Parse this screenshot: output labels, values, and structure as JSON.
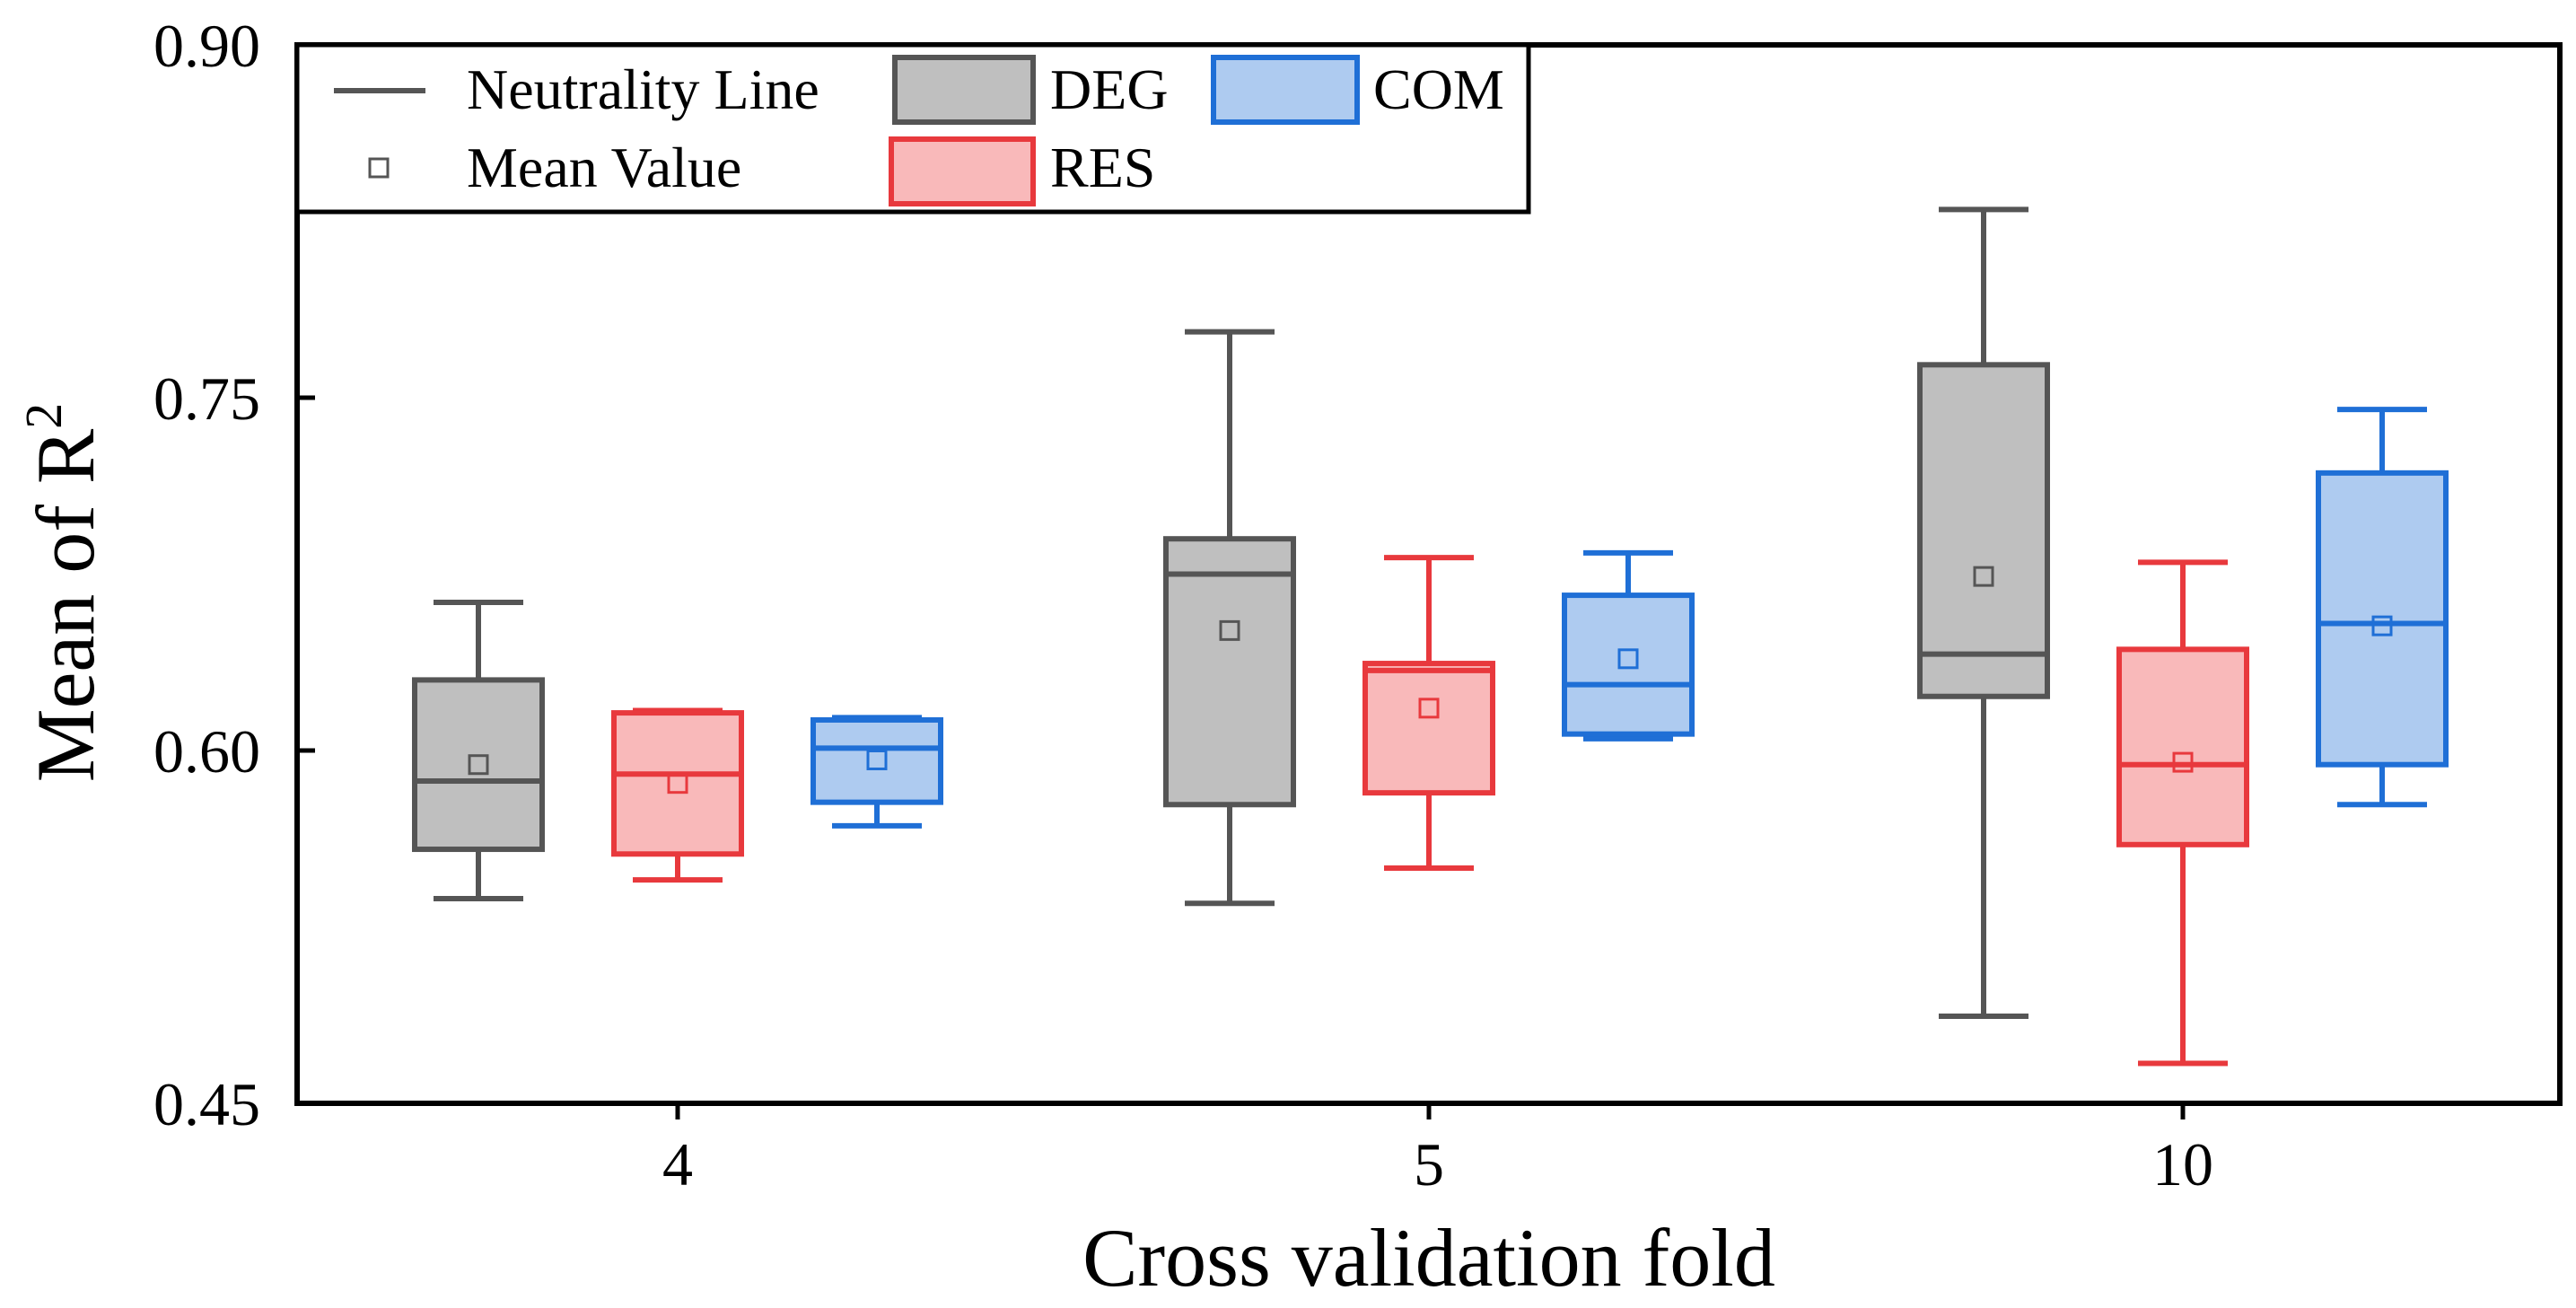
{
  "chart_data": {
    "type": "box",
    "xlabel": "Cross validation fold",
    "ylabel_main": "Mean of R",
    "ylabel_sup": "2",
    "ylim": [
      0.45,
      0.9
    ],
    "yticks": [
      "0.45",
      "0.60",
      "0.75",
      "0.90"
    ],
    "ytick_values": [
      0.45,
      0.6,
      0.75,
      0.9
    ],
    "categories": [
      "4",
      "5",
      "10"
    ],
    "legend": {
      "neutrality_line": "Neutrality Line",
      "mean_value": "Mean Value",
      "deg": "DEG",
      "res": "RES",
      "com": "COM",
      "position": "top-left"
    },
    "colors": {
      "DEG": {
        "edge": "#555555",
        "fill": "#bfbfbf"
      },
      "RES": {
        "edge": "#e8393d",
        "fill": "#f9b9ba"
      },
      "COM": {
        "edge": "#1f6fd6",
        "fill": "#aecbf0"
      }
    },
    "series": [
      {
        "name": "DEG",
        "boxes": [
          {
            "min": 0.537,
            "q1": 0.558,
            "median": 0.587,
            "q3": 0.63,
            "max": 0.663,
            "mean": 0.594
          },
          {
            "min": 0.535,
            "q1": 0.577,
            "median": 0.675,
            "q3": 0.69,
            "max": 0.778,
            "mean": 0.651
          },
          {
            "min": 0.487,
            "q1": 0.623,
            "median": 0.641,
            "q3": 0.764,
            "max": 0.83,
            "mean": 0.674
          }
        ]
      },
      {
        "name": "RES",
        "boxes": [
          {
            "min": 0.545,
            "q1": 0.556,
            "median": 0.59,
            "q3": 0.616,
            "max": 0.617,
            "mean": 0.586
          },
          {
            "min": 0.55,
            "q1": 0.582,
            "median": 0.634,
            "q3": 0.637,
            "max": 0.682,
            "mean": 0.618
          },
          {
            "min": 0.467,
            "q1": 0.56,
            "median": 0.594,
            "q3": 0.643,
            "max": 0.68,
            "mean": 0.595
          }
        ]
      },
      {
        "name": "COM",
        "boxes": [
          {
            "min": 0.568,
            "q1": 0.578,
            "median": 0.601,
            "q3": 0.613,
            "max": 0.614,
            "mean": 0.596
          },
          {
            "min": 0.605,
            "q1": 0.607,
            "median": 0.628,
            "q3": 0.666,
            "max": 0.684,
            "mean": 0.639
          },
          {
            "min": 0.577,
            "q1": 0.594,
            "median": 0.654,
            "q3": 0.718,
            "max": 0.745,
            "mean": 0.653
          }
        ]
      }
    ]
  }
}
